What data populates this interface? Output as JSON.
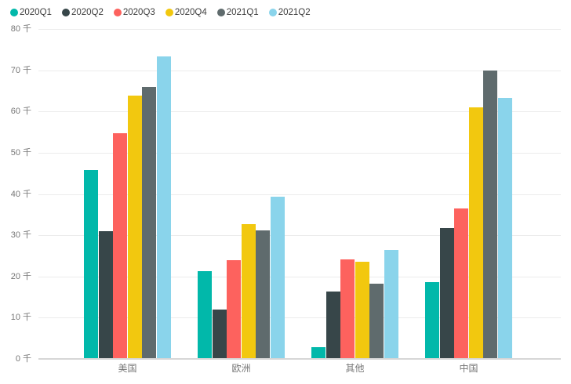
{
  "chart_data": {
    "type": "bar",
    "title": "",
    "categories": [
      "美国",
      "欧洲",
      "其他",
      "中国"
    ],
    "series": [
      {
        "name": "2020Q1",
        "color": "#01B8AA",
        "values": [
          45.8,
          21.2,
          2.8,
          18.6
        ]
      },
      {
        "name": "2020Q2",
        "color": "#374649",
        "values": [
          30.9,
          12.0,
          16.3,
          31.8
        ]
      },
      {
        "name": "2020Q3",
        "color": "#FD625E",
        "values": [
          54.7,
          24.0,
          24.1,
          36.5
        ]
      },
      {
        "name": "2020Q4",
        "color": "#F2C80F",
        "values": [
          63.9,
          32.6,
          23.5,
          61.0
        ]
      },
      {
        "name": "2021Q1",
        "color": "#5F6B6D",
        "values": [
          66.0,
          31.2,
          18.2,
          69.9
        ]
      },
      {
        "name": "2021Q2",
        "color": "#8AD4EB",
        "values": [
          73.3,
          39.3,
          26.4,
          63.2
        ]
      }
    ],
    "y_axis": {
      "min": 0,
      "max": 80,
      "tick_step": 10,
      "unit_suffix": "千",
      "tick_labels": [
        "0 千",
        "10 千",
        "20 千",
        "30 千",
        "40 千",
        "50 千",
        "60 千",
        "70 千",
        "80 千"
      ]
    },
    "x_axis": {
      "tick_labels": [
        "美国",
        "欧洲",
        "其他",
        "中国"
      ]
    },
    "legend": {
      "position": "top-left",
      "items": [
        "2020Q1",
        "2020Q2",
        "2020Q3",
        "2020Q4",
        "2021Q1",
        "2021Q2"
      ]
    },
    "grid": true
  },
  "colors": {
    "background": "#ffffff",
    "gridline": "#ececec",
    "axis_line": "#d6d6d6",
    "tick_text": "#777777",
    "category_text": "#777777",
    "legend_text": "#3f3f3f"
  }
}
